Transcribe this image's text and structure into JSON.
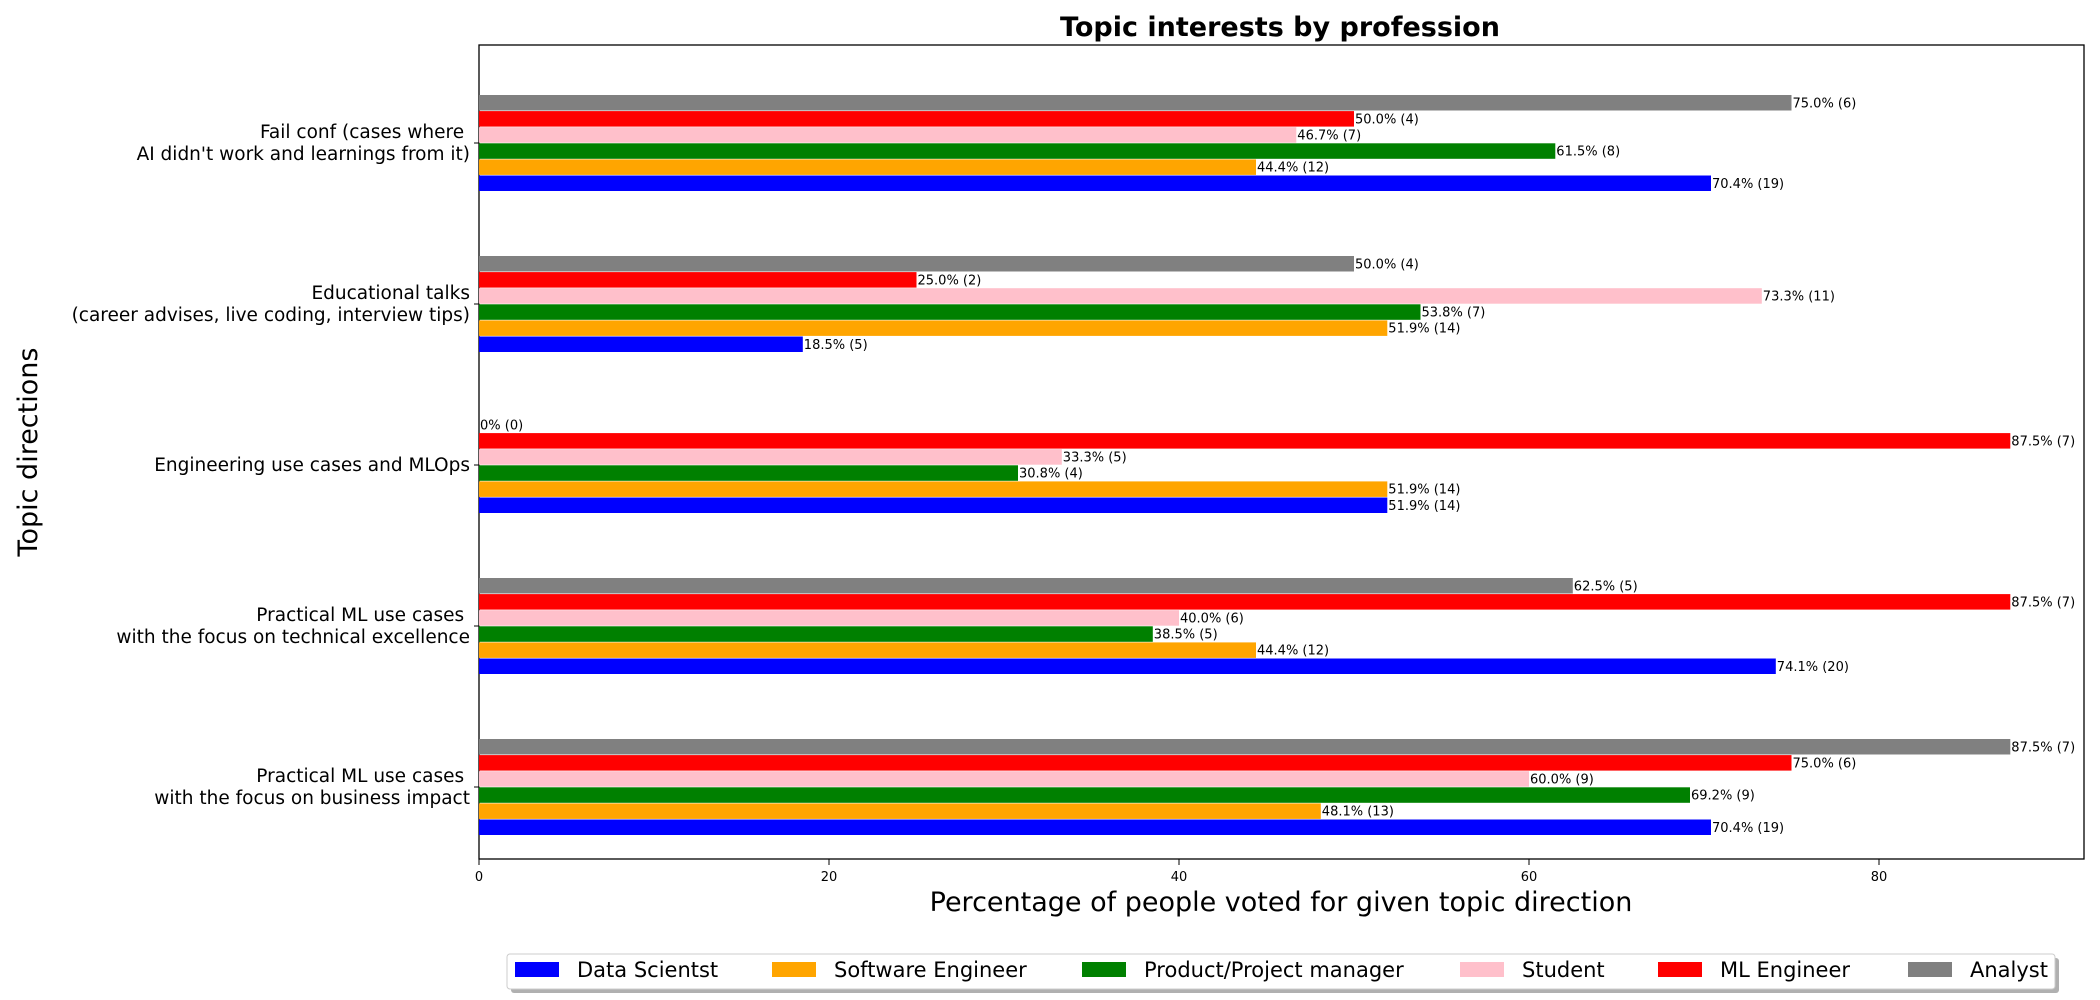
{
  "chart_data": {
    "type": "bar",
    "orientation": "horizontal",
    "title": "Topic interests by profession",
    "xlabel": "Percentage of people voted for given topic direction",
    "ylabel": "Topic directions",
    "xlim": [
      0,
      92
    ],
    "xticks": [
      0,
      20,
      40,
      60,
      80
    ],
    "grid": false,
    "legend_position": "bottom",
    "categories": [
      [
        "Fail conf (cases where ",
        "AI didn't work and learnings from it)"
      ],
      [
        "Educational talks",
        "(career advises, live coding, interview tips)"
      ],
      [
        "Engineering use cases and MLOps"
      ],
      [
        "Practical ML use cases ",
        "with the focus on technical excellence"
      ],
      [
        "Practical ML use cases ",
        "with the focus on business impact"
      ]
    ],
    "series": [
      {
        "name": "Data Scientst",
        "color": "#0000ff",
        "values": [
          70.4,
          18.5,
          51.9,
          74.1,
          70.4
        ],
        "labels": [
          "70.4% (19)",
          "18.5% (5)",
          "51.9% (14)",
          "74.1% (20)",
          "70.4% (19)"
        ]
      },
      {
        "name": "Software Engineer",
        "color": "#ffa500",
        "values": [
          44.4,
          51.9,
          51.9,
          44.4,
          48.1
        ],
        "labels": [
          "44.4% (12)",
          "51.9% (14)",
          "51.9% (14)",
          "44.4% (12)",
          "48.1% (13)"
        ]
      },
      {
        "name": "Product/Project manager",
        "color": "#008000",
        "values": [
          61.5,
          53.8,
          30.8,
          38.5,
          69.2
        ],
        "labels": [
          "61.5% (8)",
          "53.8% (7)",
          "30.8% (4)",
          "38.5% (5)",
          "69.2% (9)"
        ]
      },
      {
        "name": "Student",
        "color": "#ffc0cb",
        "values": [
          46.7,
          73.3,
          33.3,
          40.0,
          60.0
        ],
        "labels": [
          "46.7% (7)",
          "73.3% (11)",
          "33.3% (5)",
          "40.0% (6)",
          "60.0% (9)"
        ]
      },
      {
        "name": "ML Engineer",
        "color": "#ff0000",
        "values": [
          50.0,
          25.0,
          87.5,
          87.5,
          75.0
        ],
        "labels": [
          "50.0% (4)",
          "25.0% (2)",
          "87.5% (7)",
          "87.5% (7)",
          "75.0% (6)"
        ]
      },
      {
        "name": "Analyst",
        "color": "#808080",
        "values": [
          75.0,
          50.0,
          0,
          62.5,
          87.5
        ],
        "labels": [
          "75.0% (6)",
          "50.0% (4)",
          "0% (0)",
          "62.5% (5)",
          "87.5% (7)"
        ]
      }
    ]
  }
}
